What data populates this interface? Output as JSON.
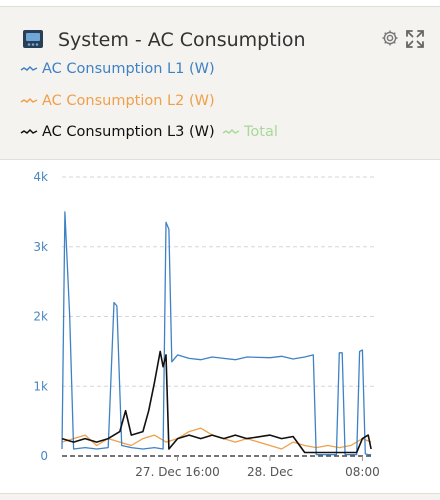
{
  "widget": {
    "title": "System - AC Consumption",
    "icons": {
      "device": "device-monitor-icon",
      "settings": "gear-icon",
      "expand": "expand-icon"
    }
  },
  "legend": [
    {
      "label": "AC Consumption L1 (W)",
      "color": "#3f82c4"
    },
    {
      "label": "AC Consumption L2 (W)",
      "color": "#f0a04a"
    },
    {
      "label": "AC Consumption L3 (W)",
      "color": "#111111"
    },
    {
      "label": "Total",
      "color": "#a9d89a"
    }
  ],
  "chart_data": {
    "type": "line",
    "xlabel": "",
    "ylabel": "",
    "ylim": [
      0,
      4000
    ],
    "yticks": [
      {
        "value": 0,
        "label": "0"
      },
      {
        "value": 1000,
        "label": "1k"
      },
      {
        "value": 2000,
        "label": "2k"
      },
      {
        "value": 3000,
        "label": "3k"
      },
      {
        "value": 4000,
        "label": "4k"
      }
    ],
    "xlim": [
      "2023-12-27 06:00",
      "2023-12-28 09:00"
    ],
    "xticks": [
      {
        "value": "2023-12-27 16:00",
        "label": "27. Dec 16:00"
      },
      {
        "value": "2023-12-28 00:00",
        "label": "28. Dec"
      },
      {
        "value": "2023-12-28 08:00",
        "label": "08:00"
      }
    ],
    "grid": "horizontal-dashed",
    "series": [
      {
        "name": "AC Consumption L1 (W)",
        "color": "#3f82c4",
        "points": [
          [
            "2023-12-27 06:00",
            100
          ],
          [
            "2023-12-27 06:15",
            3500
          ],
          [
            "2023-12-27 06:40",
            2000
          ],
          [
            "2023-12-27 07:00",
            100
          ],
          [
            "2023-12-27 08:00",
            120
          ],
          [
            "2023-12-27 09:00",
            100
          ],
          [
            "2023-12-27 10:00",
            120
          ],
          [
            "2023-12-27 10:30",
            2200
          ],
          [
            "2023-12-27 10:45",
            2150
          ],
          [
            "2023-12-27 11:10",
            150
          ],
          [
            "2023-12-27 12:00",
            120
          ],
          [
            "2023-12-27 13:00",
            100
          ],
          [
            "2023-12-27 14:00",
            120
          ],
          [
            "2023-12-27 14:45",
            100
          ],
          [
            "2023-12-27 15:00",
            3350
          ],
          [
            "2023-12-27 15:15",
            3250
          ],
          [
            "2023-12-27 15:30",
            1350
          ],
          [
            "2023-12-27 16:00",
            1450
          ],
          [
            "2023-12-27 17:00",
            1400
          ],
          [
            "2023-12-27 18:00",
            1380
          ],
          [
            "2023-12-27 19:00",
            1420
          ],
          [
            "2023-12-27 20:00",
            1400
          ],
          [
            "2023-12-27 21:00",
            1380
          ],
          [
            "2023-12-27 22:00",
            1420
          ],
          [
            "2023-12-28 00:00",
            1410
          ],
          [
            "2023-12-28 01:00",
            1430
          ],
          [
            "2023-12-28 02:00",
            1390
          ],
          [
            "2023-12-28 03:00",
            1420
          ],
          [
            "2023-12-28 03:45",
            1450
          ],
          [
            "2023-12-28 04:00",
            20
          ],
          [
            "2023-12-28 05:00",
            20
          ],
          [
            "2023-12-28 05:45",
            20
          ],
          [
            "2023-12-28 06:00",
            1480
          ],
          [
            "2023-12-28 06:15",
            1480
          ],
          [
            "2023-12-28 06:30",
            20
          ],
          [
            "2023-12-28 07:30",
            20
          ],
          [
            "2023-12-28 07:45",
            1500
          ],
          [
            "2023-12-28 08:00",
            1520
          ],
          [
            "2023-12-28 08:15",
            30
          ],
          [
            "2023-12-28 08:30",
            20
          ],
          [
            "2023-12-28 08:45",
            20
          ]
        ]
      },
      {
        "name": "AC Consumption L2 (W)",
        "color": "#f0a04a",
        "points": [
          [
            "2023-12-27 06:00",
            200
          ],
          [
            "2023-12-27 07:00",
            250
          ],
          [
            "2023-12-27 08:00",
            300
          ],
          [
            "2023-12-27 09:00",
            150
          ],
          [
            "2023-12-27 10:00",
            250
          ],
          [
            "2023-12-27 11:00",
            200
          ],
          [
            "2023-12-27 12:00",
            150
          ],
          [
            "2023-12-27 13:00",
            250
          ],
          [
            "2023-12-27 14:00",
            300
          ],
          [
            "2023-12-27 15:00",
            200
          ],
          [
            "2023-12-27 16:00",
            250
          ],
          [
            "2023-12-27 17:00",
            350
          ],
          [
            "2023-12-27 18:00",
            400
          ],
          [
            "2023-12-27 19:00",
            300
          ],
          [
            "2023-12-27 20:00",
            250
          ],
          [
            "2023-12-27 21:00",
            200
          ],
          [
            "2023-12-27 22:00",
            250
          ],
          [
            "2023-12-28 00:00",
            150
          ],
          [
            "2023-12-28 01:00",
            100
          ],
          [
            "2023-12-28 02:00",
            200
          ],
          [
            "2023-12-28 03:00",
            150
          ],
          [
            "2023-12-28 04:00",
            120
          ],
          [
            "2023-12-28 05:00",
            150
          ],
          [
            "2023-12-28 06:00",
            120
          ],
          [
            "2023-12-28 07:00",
            150
          ],
          [
            "2023-12-28 08:00",
            250
          ],
          [
            "2023-12-28 08:45",
            200
          ]
        ]
      },
      {
        "name": "AC Consumption L3 (W)",
        "color": "#111111",
        "points": [
          [
            "2023-12-27 06:00",
            250
          ],
          [
            "2023-12-27 07:00",
            200
          ],
          [
            "2023-12-27 08:00",
            250
          ],
          [
            "2023-12-27 09:00",
            200
          ],
          [
            "2023-12-27 10:00",
            250
          ],
          [
            "2023-12-27 11:00",
            350
          ],
          [
            "2023-12-27 11:30",
            650
          ],
          [
            "2023-12-27 12:00",
            300
          ],
          [
            "2023-12-27 13:00",
            350
          ],
          [
            "2023-12-27 13:30",
            650
          ],
          [
            "2023-12-27 14:00",
            1050
          ],
          [
            "2023-12-27 14:30",
            1500
          ],
          [
            "2023-12-27 14:45",
            1280
          ],
          [
            "2023-12-27 15:00",
            1450
          ],
          [
            "2023-12-27 15:15",
            100
          ],
          [
            "2023-12-27 16:00",
            250
          ],
          [
            "2023-12-27 17:00",
            300
          ],
          [
            "2023-12-27 18:00",
            250
          ],
          [
            "2023-12-27 19:00",
            300
          ],
          [
            "2023-12-27 20:00",
            250
          ],
          [
            "2023-12-27 21:00",
            300
          ],
          [
            "2023-12-27 22:00",
            250
          ],
          [
            "2023-12-28 00:00",
            300
          ],
          [
            "2023-12-28 01:00",
            250
          ],
          [
            "2023-12-28 02:00",
            280
          ],
          [
            "2023-12-28 03:00",
            50
          ],
          [
            "2023-12-28 04:00",
            50
          ],
          [
            "2023-12-28 05:00",
            50
          ],
          [
            "2023-12-28 06:00",
            50
          ],
          [
            "2023-12-28 07:00",
            50
          ],
          [
            "2023-12-28 07:30",
            50
          ],
          [
            "2023-12-28 08:00",
            250
          ],
          [
            "2023-12-28 08:30",
            300
          ],
          [
            "2023-12-28 08:45",
            100
          ]
        ]
      },
      {
        "name": "Total",
        "color": "#a9d89a",
        "points": []
      }
    ]
  }
}
